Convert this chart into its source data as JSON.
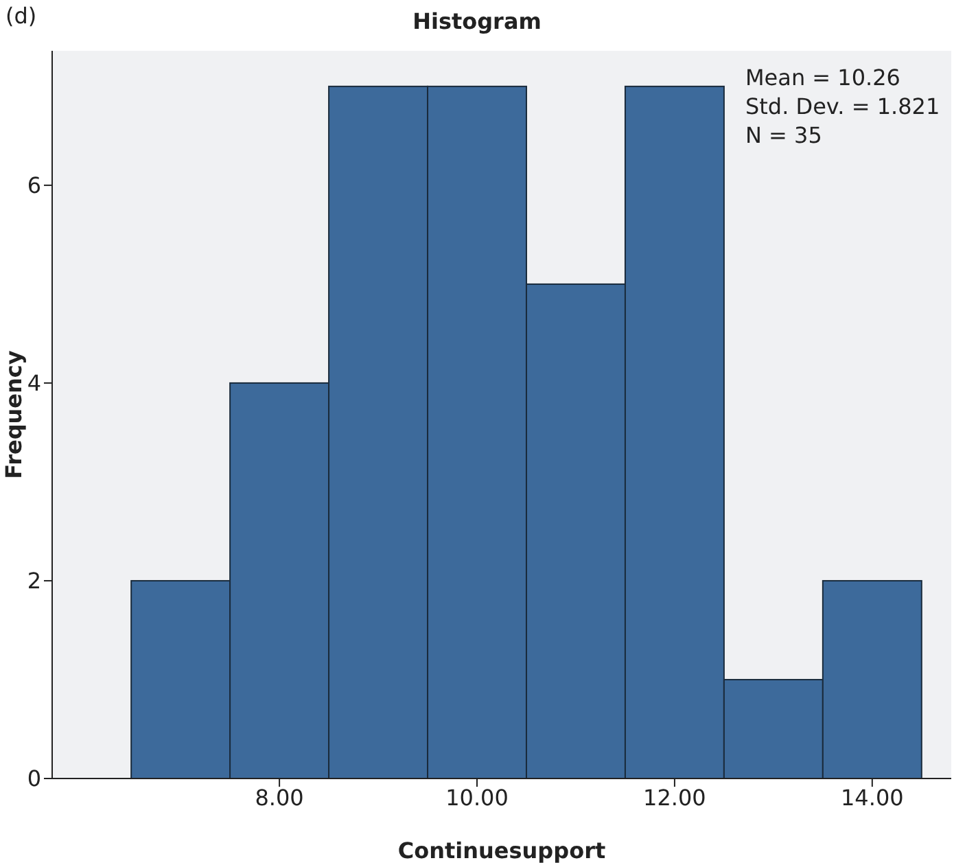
{
  "chart_data": {
    "type": "histogram",
    "title": "Histogram",
    "xlabel": "Continuesupport",
    "ylabel": "Frequency",
    "bins": [
      6.5,
      7.5,
      8.5,
      9.5,
      10.5,
      11.5,
      12.5,
      13.5,
      14.5
    ],
    "values": [
      2,
      4,
      7,
      7,
      5,
      7,
      1,
      2
    ],
    "color": "#3d6a9b",
    "xlim": [
      5.7,
      14.8
    ],
    "xticks": [
      {
        "value": 8,
        "label": "8.00"
      },
      {
        "value": 10,
        "label": "10.00"
      },
      {
        "value": 12,
        "label": "12.00"
      },
      {
        "value": 14,
        "label": "14.00"
      }
    ],
    "ylim": [
      0,
      7.36
    ],
    "yticks": [
      0,
      2,
      4,
      6
    ],
    "annotations": [
      "(d)",
      "Mean = 10.26",
      "Std. Dev. = 1.821",
      "N = 35"
    ]
  }
}
